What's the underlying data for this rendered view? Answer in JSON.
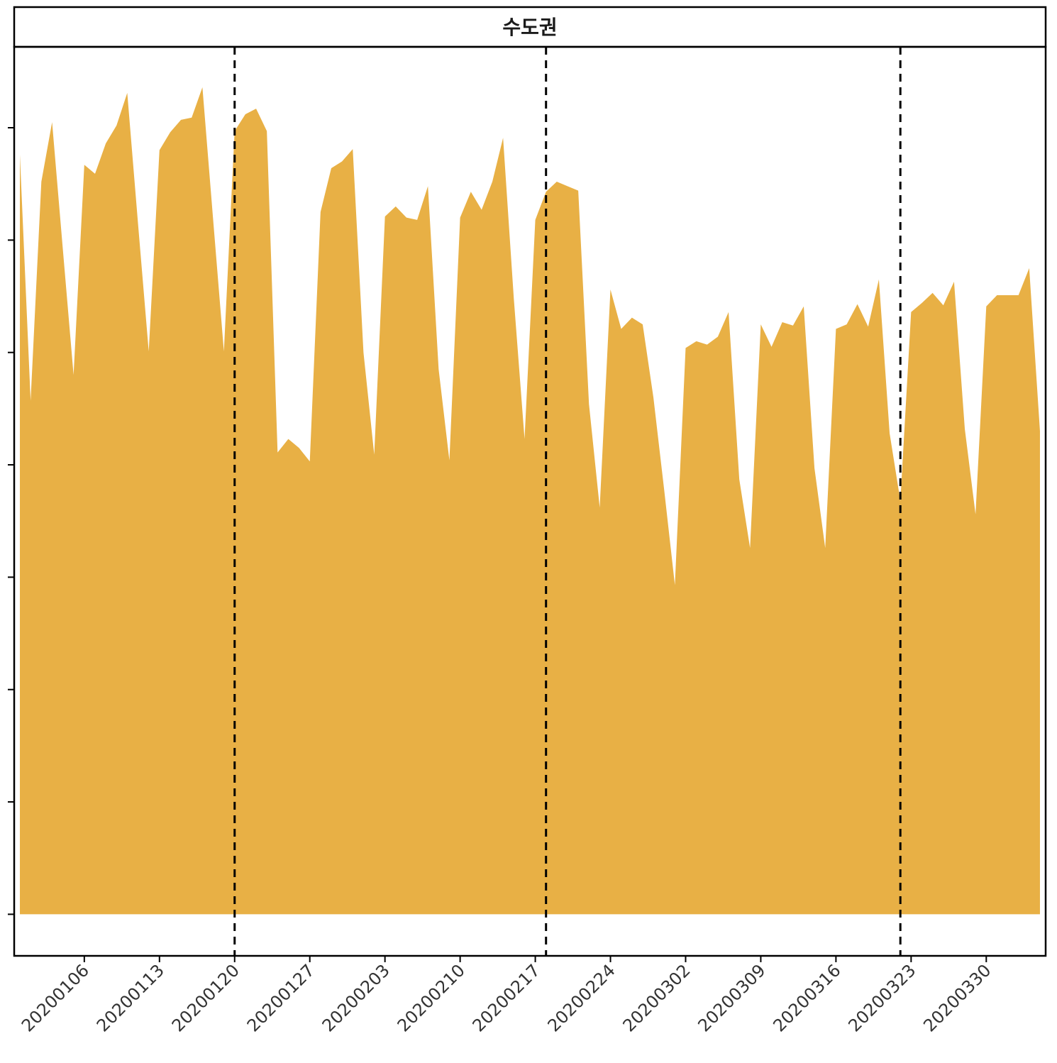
{
  "chart_data": {
    "type": "area",
    "title": "수도권",
    "x": [
      "20191231",
      "20200101",
      "20200102",
      "20200103",
      "20200104",
      "20200105",
      "20200106",
      "20200107",
      "20200108",
      "20200109",
      "20200110",
      "20200111",
      "20200112",
      "20200113",
      "20200114",
      "20200115",
      "20200116",
      "20200117",
      "20200118",
      "20200119",
      "20200120",
      "20200121",
      "20200122",
      "20200123",
      "20200124",
      "20200125",
      "20200126",
      "20200127",
      "20200128",
      "20200129",
      "20200130",
      "20200131",
      "20200201",
      "20200202",
      "20200203",
      "20200204",
      "20200205",
      "20200206",
      "20200207",
      "20200208",
      "20200209",
      "20200210",
      "20200211",
      "20200212",
      "20200213",
      "20200214",
      "20200215",
      "20200216",
      "20200217",
      "20200218",
      "20200219",
      "20200220",
      "20200221",
      "20200222",
      "20200223",
      "20200224",
      "20200225",
      "20200226",
      "20200227",
      "20200228",
      "20200229",
      "20200301",
      "20200302",
      "20200303",
      "20200304",
      "20200305",
      "20200306",
      "20200307",
      "20200308",
      "20200309",
      "20200310",
      "20200311",
      "20200312",
      "20200313",
      "20200314",
      "20200315",
      "20200316",
      "20200317",
      "20200318",
      "20200319",
      "20200320",
      "20200321",
      "20200322",
      "20200323",
      "20200324",
      "20200325",
      "20200326",
      "20200327",
      "20200328",
      "20200329",
      "20200330",
      "20200331",
      "20200401",
      "20200402",
      "20200403",
      "20200404"
    ],
    "values": [
      6.76,
      4.57,
      6.52,
      7.05,
      5.92,
      4.8,
      6.67,
      6.59,
      6.86,
      7.02,
      7.31,
      6.15,
      5.01,
      6.8,
      6.96,
      7.07,
      7.09,
      7.36,
      6.18,
      5.01,
      6.97,
      7.12,
      7.17,
      6.97,
      4.11,
      4.23,
      4.15,
      4.03,
      6.25,
      6.64,
      6.7,
      6.81,
      5.0,
      4.09,
      6.21,
      6.3,
      6.2,
      6.18,
      6.48,
      4.85,
      4.04,
      6.2,
      6.43,
      6.27,
      6.52,
      6.91,
      5.48,
      4.23,
      6.18,
      6.43,
      6.52,
      6.48,
      6.44,
      4.54,
      3.62,
      5.56,
      5.21,
      5.31,
      5.25,
      4.6,
      3.78,
      2.93,
      5.04,
      5.1,
      5.07,
      5.14,
      5.36,
      3.87,
      3.26,
      5.25,
      5.05,
      5.27,
      5.24,
      5.41,
      3.97,
      3.26,
      5.21,
      5.25,
      5.43,
      5.23,
      5.65,
      4.28,
      3.68,
      5.36,
      5.44,
      5.53,
      5.42,
      5.63,
      4.32,
      3.56,
      5.41,
      5.51,
      5.51,
      5.51,
      5.75,
      4.3
    ],
    "color": "#E8B045",
    "xticks": [
      "20200106",
      "20200113",
      "20200120",
      "20200127",
      "20200203",
      "20200210",
      "20200217",
      "20200224",
      "20200302",
      "20200309",
      "20200316",
      "20200323",
      "20200330"
    ],
    "vlines": [
      "20200120",
      "20200218",
      "20200322"
    ],
    "ylim": [
      -0.37,
      7.72
    ],
    "yticks": [
      0,
      1,
      2,
      3,
      4,
      5,
      6,
      7
    ]
  }
}
